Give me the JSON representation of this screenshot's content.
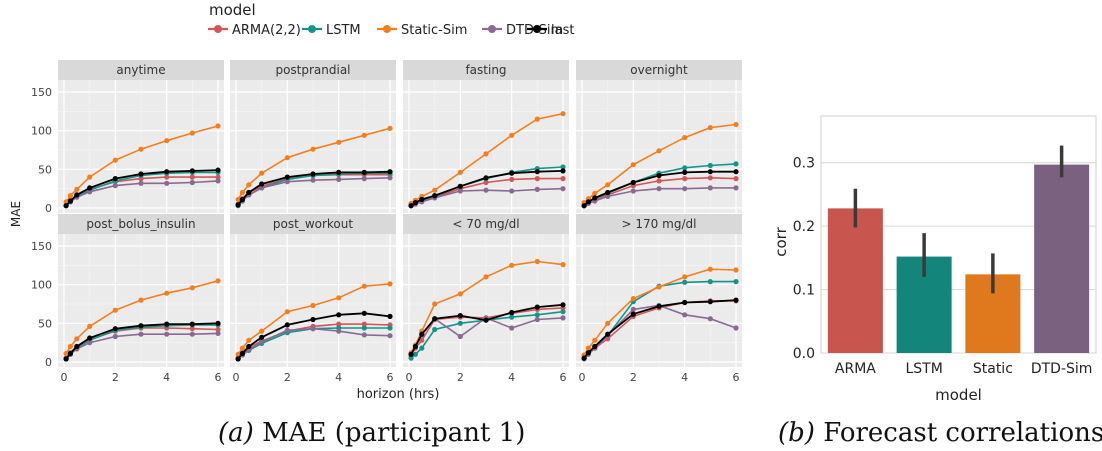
{
  "legend": {
    "title": "model",
    "entries": [
      {
        "name": "ARMA(2,2)",
        "color": "#d1575a"
      },
      {
        "name": "LSTM",
        "color": "#14958a"
      },
      {
        "name": "Static-Sim",
        "color": "#f47f1f"
      },
      {
        "name": "DTD-Sim",
        "color": "#8a6a93"
      },
      {
        "name": "last",
        "color": "#000000"
      }
    ]
  },
  "captions": {
    "a_label": "(a)",
    "a_text": "MAE (participant 1)",
    "b_label": "(b)",
    "b_text": "Forecast correlations"
  },
  "chart_data": [
    {
      "type": "line",
      "title": "",
      "xlabel": "horizon (hrs)",
      "ylabel": "MAE",
      "xlim": [
        0,
        6
      ],
      "ylim": [
        0,
        150
      ],
      "xticks": [
        0,
        2,
        4,
        6
      ],
      "yticks": [
        0,
        50,
        100,
        150
      ],
      "grid": true,
      "legend_position": "top",
      "x": [
        0.083,
        0.25,
        0.5,
        1,
        2,
        3,
        4,
        5,
        6
      ],
      "facets": [
        {
          "label": "anytime",
          "series": [
            {
              "name": "ARMA(2,2)",
              "values": [
                4,
                10,
                16,
                24,
                34,
                38,
                40,
                40,
                40
              ]
            },
            {
              "name": "LSTM",
              "values": [
                3,
                8,
                15,
                23,
                35,
                42,
                45,
                46,
                46
              ]
            },
            {
              "name": "Static-Sim",
              "values": [
                8,
                16,
                24,
                40,
                62,
                76,
                87,
                97,
                106
              ]
            },
            {
              "name": "DTD-Sim",
              "values": [
                3,
                8,
                14,
                21,
                29,
                32,
                32,
                33,
                35
              ]
            },
            {
              "name": "last",
              "values": [
                3,
                9,
                17,
                26,
                38,
                44,
                47,
                48,
                49
              ]
            }
          ]
        },
        {
          "label": "postprandial",
          "series": [
            {
              "name": "ARMA(2,2)",
              "values": [
                5,
                12,
                20,
                28,
                38,
                42,
                43,
                43,
                43
              ]
            },
            {
              "name": "LSTM",
              "values": [
                3,
                9,
                17,
                26,
                37,
                42,
                44,
                45,
                45
              ]
            },
            {
              "name": "Static-Sim",
              "values": [
                11,
                20,
                30,
                45,
                65,
                76,
                85,
                94,
                103
              ]
            },
            {
              "name": "DTD-Sim",
              "values": [
                4,
                10,
                17,
                26,
                34,
                36,
                37,
                38,
                39
              ]
            },
            {
              "name": "last",
              "values": [
                4,
                11,
                20,
                31,
                40,
                44,
                46,
                46,
                47
              ]
            }
          ]
        },
        {
          "label": "fasting",
          "series": [
            {
              "name": "ARMA(2,2)",
              "values": [
                3,
                6,
                9,
                14,
                25,
                33,
                37,
                38,
                38
              ]
            },
            {
              "name": "LSTM",
              "values": [
                3,
                6,
                10,
                15,
                28,
                38,
                46,
                51,
                53
              ]
            },
            {
              "name": "Static-Sim",
              "values": [
                6,
                10,
                15,
                23,
                46,
                70,
                94,
                115,
                122
              ]
            },
            {
              "name": "DTD-Sim",
              "values": [
                3,
                5,
                8,
                13,
                22,
                23,
                22,
                24,
                25
              ]
            },
            {
              "name": "last",
              "values": [
                3,
                7,
                11,
                16,
                28,
                39,
                45,
                47,
                48
              ]
            }
          ]
        },
        {
          "label": "overnight",
          "series": [
            {
              "name": "ARMA(2,2)",
              "values": [
                3,
                7,
                11,
                17,
                29,
                35,
                38,
                39,
                38
              ]
            },
            {
              "name": "LSTM",
              "values": [
                3,
                7,
                12,
                19,
                33,
                45,
                52,
                55,
                57
              ]
            },
            {
              "name": "Static-Sim",
              "values": [
                7,
                12,
                19,
                30,
                56,
                74,
                91,
                104,
                108
              ]
            },
            {
              "name": "DTD-Sim",
              "values": [
                3,
                6,
                9,
                15,
                22,
                25,
                25,
                26,
                26
              ]
            },
            {
              "name": "last",
              "values": [
                3,
                8,
                13,
                20,
                33,
                42,
                46,
                47,
                47
              ]
            }
          ]
        },
        {
          "label": "post_bolus_insulin",
          "series": [
            {
              "name": "ARMA(2,2)",
              "values": [
                5,
                12,
                20,
                29,
                40,
                44,
                44,
                43,
                42
              ]
            },
            {
              "name": "LSTM",
              "values": [
                4,
                10,
                18,
                28,
                41,
                45,
                47,
                48,
                48
              ]
            },
            {
              "name": "Static-Sim",
              "values": [
                11,
                20,
                30,
                46,
                67,
                80,
                89,
                96,
                105
              ]
            },
            {
              "name": "DTD-Sim",
              "values": [
                4,
                10,
                17,
                25,
                33,
                36,
                36,
                36,
                37
              ]
            },
            {
              "name": "last",
              "values": [
                4,
                11,
                20,
                31,
                43,
                47,
                49,
                49,
                50
              ]
            }
          ]
        },
        {
          "label": "post_workout",
          "series": [
            {
              "name": "ARMA(2,2)",
              "values": [
                5,
                12,
                19,
                27,
                40,
                46,
                49,
                49,
                48
              ]
            },
            {
              "name": "LSTM",
              "values": [
                4,
                9,
                15,
                24,
                38,
                43,
                44,
                44,
                44
              ]
            },
            {
              "name": "Static-Sim",
              "values": [
                10,
                18,
                28,
                40,
                65,
                73,
                83,
                98,
                101
              ]
            },
            {
              "name": "DTD-Sim",
              "values": [
                4,
                9,
                16,
                26,
                41,
                43,
                40,
                35,
                34
              ]
            },
            {
              "name": "last",
              "values": [
                4,
                11,
                20,
                32,
                48,
                55,
                61,
                63,
                59
              ]
            }
          ]
        },
        {
          "label": "< 70 mg/dl",
          "series": [
            {
              "name": "ARMA(2,2)",
              "values": [
                8,
                18,
                28,
                55,
                58,
                57,
                63,
                68,
                70
              ]
            },
            {
              "name": "LSTM",
              "values": [
                5,
                10,
                18,
                42,
                50,
                54,
                58,
                61,
                65
              ]
            },
            {
              "name": "Static-Sim",
              "values": [
                12,
                22,
                40,
                75,
                88,
                110,
                125,
                130,
                126
              ]
            },
            {
              "name": "DTD-Sim",
              "values": [
                10,
                20,
                35,
                56,
                33,
                57,
                44,
                55,
                57
              ]
            },
            {
              "name": "last",
              "values": [
                10,
                20,
                36,
                56,
                60,
                54,
                64,
                71,
                74
              ]
            }
          ]
        },
        {
          "label": "> 170 mg/dl",
          "series": [
            {
              "name": "ARMA(2,2)",
              "values": [
                5,
                11,
                18,
                30,
                59,
                70,
                77,
                79,
                79
              ]
            },
            {
              "name": "LSTM",
              "values": [
                5,
                12,
                20,
                34,
                78,
                98,
                103,
                104,
                104
              ]
            },
            {
              "name": "Static-Sim",
              "values": [
                9,
                18,
                28,
                50,
                82,
                97,
                110,
                120,
                119
              ]
            },
            {
              "name": "DTD-Sim",
              "values": [
                4,
                10,
                18,
                34,
                68,
                73,
                61,
                56,
                44
              ]
            },
            {
              "name": "last",
              "values": [
                5,
                12,
                20,
                36,
                62,
                72,
                77,
                78,
                80
              ]
            }
          ]
        }
      ]
    },
    {
      "type": "bar",
      "title": "",
      "xlabel": "model",
      "ylabel": "corr",
      "ylim": [
        0,
        0.35
      ],
      "yticks": [
        0.0,
        0.1,
        0.2,
        0.3
      ],
      "grid": true,
      "categories": [
        "ARMA",
        "LSTM",
        "Static",
        "DTD-Sim"
      ],
      "values": [
        0.228,
        0.152,
        0.124,
        0.297
      ],
      "ci_low": [
        0.198,
        0.12,
        0.094,
        0.277
      ],
      "ci_high": [
        0.259,
        0.189,
        0.157,
        0.327
      ],
      "colors": [
        "#c8564f",
        "#13857b",
        "#e0781e",
        "#7b6180"
      ]
    }
  ]
}
